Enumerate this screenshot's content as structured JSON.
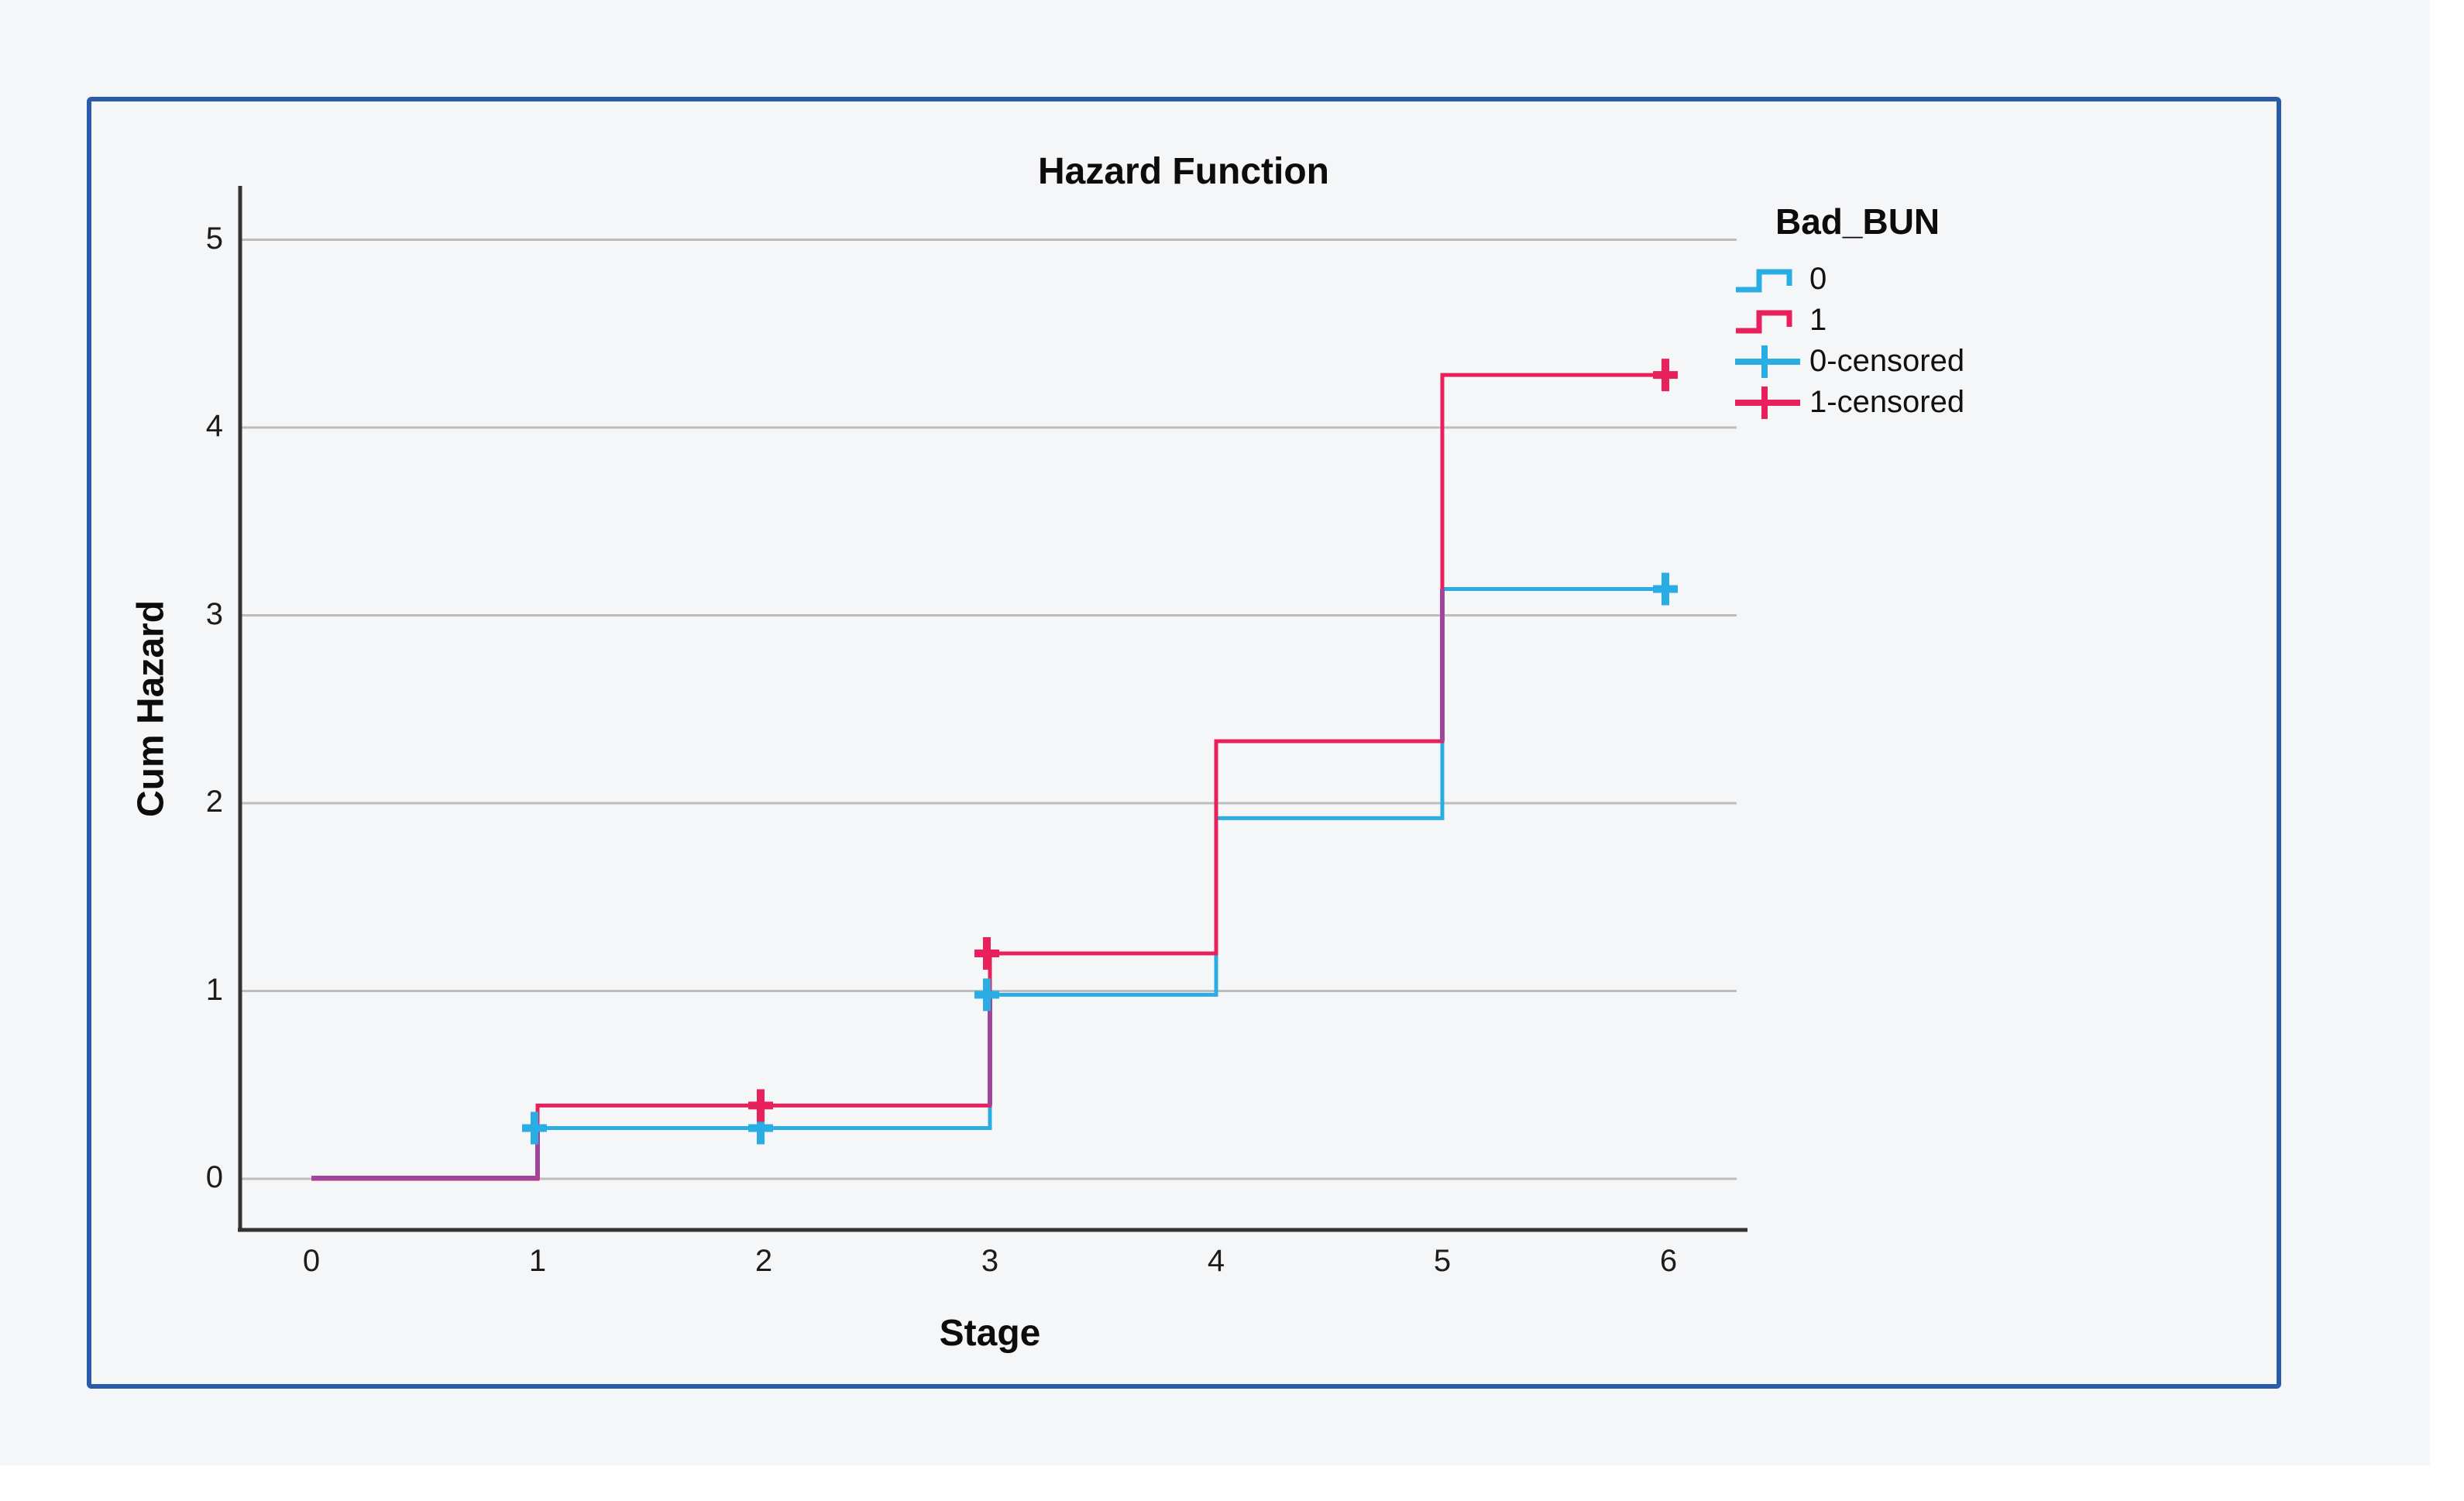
{
  "page": {
    "background": "#f5f6f8",
    "margin_background": "#ffffff",
    "panel_border_color": "#2b5ca9"
  },
  "chart_data": {
    "type": "line",
    "subtype": "step-post-cumulative-hazard",
    "title": "Hazard Function",
    "xlabel": "Stage",
    "ylabel": "Cum Hazard",
    "xticks": [
      0,
      1,
      2,
      3,
      4,
      5,
      6
    ],
    "yticks": [
      0,
      1,
      2,
      3,
      4,
      5
    ],
    "xlim": [
      -0.3,
      6.3
    ],
    "ylim": [
      -0.27,
      5.3
    ],
    "grid": "horizontal-only",
    "legend_title": "Bad_BUN",
    "legend_position": "outside-top-right",
    "series": [
      {
        "name": "0",
        "color": "#29ade3",
        "points": [
          [
            0,
            0
          ],
          [
            1,
            0
          ],
          [
            1,
            0.27
          ],
          [
            3,
            0.27
          ],
          [
            3,
            0.98
          ],
          [
            4,
            0.98
          ],
          [
            4,
            1.92
          ],
          [
            5,
            1.92
          ],
          [
            5,
            3.14
          ],
          [
            6,
            3.14
          ]
        ]
      },
      {
        "name": "1",
        "color": "#e8215d",
        "points": [
          [
            0,
            0
          ],
          [
            1,
            0
          ],
          [
            1,
            0.39
          ],
          [
            3,
            0.39
          ],
          [
            3,
            1.2
          ],
          [
            4,
            1.2
          ],
          [
            4,
            2.33
          ],
          [
            5,
            2.33
          ],
          [
            5,
            4.28
          ],
          [
            6,
            4.28
          ]
        ]
      }
    ],
    "censored": [
      {
        "name": "0-censored",
        "color": "#29ade3",
        "points": [
          [
            1,
            0.27
          ],
          [
            2,
            0.27
          ],
          [
            3,
            0.98
          ],
          [
            6,
            3.14
          ]
        ]
      },
      {
        "name": "1-censored",
        "color": "#e8215d",
        "points": [
          [
            2,
            0.39
          ],
          [
            3,
            1.2
          ],
          [
            6,
            4.28
          ]
        ]
      }
    ],
    "overlap_color": "#a0459b",
    "axis_color": "#333333",
    "grid_color": "#bdbdbd",
    "text_color": "#1c1c1c"
  }
}
